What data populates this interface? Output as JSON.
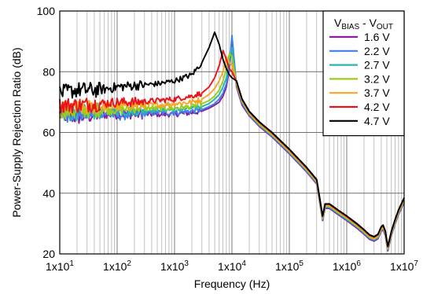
{
  "chart_data": {
    "type": "line",
    "title": "",
    "xlabel": "Frequency (Hz)",
    "ylabel": "Power-Supply Rejection Ratio (dB)",
    "xscale": "log",
    "xlim": [
      10,
      10000000
    ],
    "ylim": [
      20,
      100
    ],
    "x_ticks": [
      {
        "v": 10,
        "label": "1x10",
        "exp": "1"
      },
      {
        "v": 100,
        "label": "1x10",
        "exp": "2"
      },
      {
        "v": 1000,
        "label": "1x10",
        "exp": "3"
      },
      {
        "v": 10000,
        "label": "1x10",
        "exp": "4"
      },
      {
        "v": 100000,
        "label": "1x10",
        "exp": "5"
      },
      {
        "v": 1000000,
        "label": "1x10",
        "exp": "6"
      },
      {
        "v": 10000000,
        "label": "1x10",
        "exp": "7"
      }
    ],
    "y_ticks": [
      20,
      40,
      60,
      80,
      100
    ],
    "grid": true,
    "legend": {
      "position": "top-right",
      "title_parts": [
        "V",
        "BIAS",
        " - V",
        "OUT"
      ]
    },
    "x": [
      10,
      20,
      50,
      100,
      200,
      500,
      1000,
      2000,
      3000,
      4000,
      5000,
      6000,
      7000,
      8000,
      9000,
      10000,
      12000,
      15000,
      20000,
      30000,
      50000,
      100000,
      200000,
      300000,
      380000,
      420000,
      500000,
      700000,
      1000000,
      1500000,
      2000000,
      2500000,
      3000000,
      3500000,
      4000000,
      4300000,
      4700000,
      5200000,
      6000000,
      7000000,
      8000000,
      10000000
    ],
    "series": [
      {
        "name": "1.6 V",
        "color": "#8B1A9C",
        "values": [
          66,
          65,
          66,
          66,
          66,
          66,
          66,
          66.5,
          67,
          68,
          69,
          70,
          72,
          75,
          81,
          90,
          75,
          69,
          65.5,
          62,
          58.5,
          53,
          47,
          43,
          31,
          35,
          35,
          33,
          31,
          28.5,
          26.5,
          24.8,
          24.2,
          25,
          27.5,
          28,
          26,
          21,
          26,
          30,
          33,
          37
        ]
      },
      {
        "name": "2.2 V",
        "color": "#3E7DF0",
        "values": [
          66,
          66,
          66.5,
          65.5,
          66,
          66.5,
          66.5,
          67,
          67.5,
          68.5,
          69.5,
          71,
          73,
          76,
          82,
          92,
          75.5,
          69.5,
          65.8,
          62.3,
          58.8,
          53.3,
          47.3,
          43.3,
          31.3,
          35.3,
          35.3,
          33.3,
          31.3,
          28.8,
          26.8,
          25.1,
          24.5,
          25.3,
          27.8,
          28.3,
          26.3,
          21.3,
          26.3,
          30.3,
          33.3,
          37.3
        ]
      },
      {
        "name": "2.7 V",
        "color": "#2BB5B0",
        "values": [
          66.5,
          66.5,
          67,
          67,
          67,
          67.5,
          67.5,
          68,
          68.5,
          69.5,
          71,
          72.5,
          75,
          78,
          84,
          88,
          76,
          70,
          66,
          62.5,
          59,
          53.5,
          47.5,
          43.5,
          31.5,
          35.5,
          35.5,
          33.5,
          31.5,
          29,
          27,
          25.3,
          24.7,
          25.5,
          28,
          28.5,
          26.5,
          21.5,
          26.5,
          30.5,
          33.5,
          37.5
        ]
      },
      {
        "name": "3.2 V",
        "color": "#9ACD1A",
        "values": [
          67,
          67,
          67.5,
          67.5,
          68,
          68,
          68,
          68.5,
          69.5,
          70.5,
          72,
          74,
          77,
          81,
          86,
          85,
          76,
          70.2,
          66.2,
          62.7,
          59.2,
          53.7,
          47.7,
          43.7,
          31.7,
          35.7,
          35.7,
          33.7,
          31.7,
          29.2,
          27.2,
          25.5,
          24.9,
          25.7,
          28.2,
          28.7,
          26.7,
          21.7,
          26.7,
          30.7,
          33.7,
          37.7
        ]
      },
      {
        "name": "3.7 V",
        "color": "#F5A623",
        "values": [
          68,
          68,
          68.5,
          68.5,
          69,
          69,
          69.5,
          70,
          71,
          72.5,
          74.5,
          77,
          80,
          85,
          83,
          82,
          76.5,
          70.5,
          66.5,
          63,
          59.5,
          54,
          48,
          44,
          32,
          36,
          36,
          34,
          32,
          29.5,
          27.5,
          25.8,
          25.2,
          26,
          28.5,
          29,
          27,
          22,
          27,
          31,
          34,
          38
        ]
      },
      {
        "name": "4.2 V",
        "color": "#E8141A",
        "values": [
          69,
          69,
          69.5,
          70,
          70,
          70.5,
          71,
          72,
          73,
          75,
          78,
          82,
          87,
          84,
          81,
          80,
          76.8,
          70.8,
          66.8,
          63.3,
          59.8,
          54.3,
          48.3,
          44.3,
          32.3,
          36.3,
          36.3,
          34.3,
          32.3,
          29.8,
          27.8,
          26.1,
          25.5,
          26.3,
          28.8,
          29.3,
          27.3,
          22.3,
          27.3,
          31.3,
          34.3,
          38.3
        ]
      },
      {
        "name": "4.7 V",
        "color": "#000000",
        "values": [
          73,
          74,
          74,
          75,
          75.5,
          76,
          77,
          79,
          83,
          88,
          93,
          89,
          84,
          81,
          79,
          78,
          77,
          71,
          67,
          63.5,
          60,
          54.5,
          48.5,
          44.5,
          32.5,
          36.5,
          36.5,
          34.5,
          32.5,
          30,
          28,
          26.3,
          25.7,
          26.5,
          29,
          29.5,
          27.5,
          22.5,
          27.5,
          31.5,
          34.5,
          38.5
        ]
      }
    ]
  }
}
